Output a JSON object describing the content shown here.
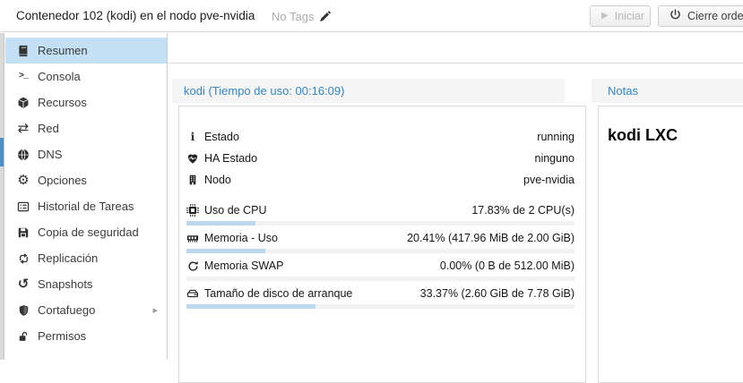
{
  "header": {
    "title": "Contenedor 102 (kodi) en el nodo pve-nvidia",
    "tags_label": "No Tags",
    "start_label": "Iniciar",
    "shutdown_label": "Cierre ordena",
    "icons": [
      "pencil-icon",
      "play-icon",
      "power-icon"
    ]
  },
  "sidebar": {
    "items": [
      {
        "id": "resumen",
        "label": "Resumen",
        "icon": "book",
        "selected": true
      },
      {
        "id": "consola",
        "label": "Consola",
        "icon": "terminal",
        "selected": false
      },
      {
        "id": "recursos",
        "label": "Recursos",
        "icon": "cube",
        "selected": false
      },
      {
        "id": "red",
        "label": "Red",
        "icon": "exchange",
        "selected": false
      },
      {
        "id": "dns",
        "label": "DNS",
        "icon": "globe",
        "selected": false
      },
      {
        "id": "opciones",
        "label": "Opciones",
        "icon": "gear",
        "selected": false
      },
      {
        "id": "historial",
        "label": "Historial de Tareas",
        "icon": "list",
        "selected": false
      },
      {
        "id": "copia",
        "label": "Copia de seguridad",
        "icon": "floppy",
        "selected": false
      },
      {
        "id": "replicacion",
        "label": "Replicación",
        "icon": "retweet",
        "selected": false
      },
      {
        "id": "snapshots",
        "label": "Snapshots",
        "icon": "history",
        "selected": false
      },
      {
        "id": "cortafuego",
        "label": "Cortafuego",
        "icon": "shield",
        "selected": false,
        "submenu": true
      },
      {
        "id": "permisos",
        "label": "Permisos",
        "icon": "unlock",
        "selected": false
      }
    ]
  },
  "status": {
    "title": "kodi (Tiempo de uso: 00:16:09)",
    "rows": [
      {
        "icon": "info",
        "label": "Estado",
        "value": "running"
      },
      {
        "icon": "heartbeat",
        "label": "HA Estado",
        "value": "ninguno"
      },
      {
        "icon": "building",
        "label": "Nodo",
        "value": "pve-nvidia"
      }
    ],
    "meters": [
      {
        "icon": "cpu",
        "label": "Uso de CPU",
        "value": "17.83% de 2 CPU(s)",
        "percent": 17.83
      },
      {
        "icon": "memory",
        "label": "Memoria - Uso",
        "value": "20.41% (417.96 MiB de 2.00 GiB)",
        "percent": 20.41
      },
      {
        "icon": "refresh",
        "label": "Memoria SWAP",
        "value": "0.00% (0 B de 512.00 MiB)",
        "percent": 0
      },
      {
        "icon": "disk",
        "label": "Tamaño de disco de arranque",
        "value": "33.37% (2.60 GiB de 7.78 GiB)",
        "percent": 33.37
      }
    ]
  },
  "notes": {
    "title": "Notas",
    "content": "kodi LXC"
  },
  "colors": {
    "panel_title_blue": "#3585c5",
    "selected_item_bg": "#c3e0f4",
    "progress_fill": "#bcd8ee",
    "progress_track": "#f2f2f2",
    "tree_thumb_blue": "#4a90c9"
  }
}
